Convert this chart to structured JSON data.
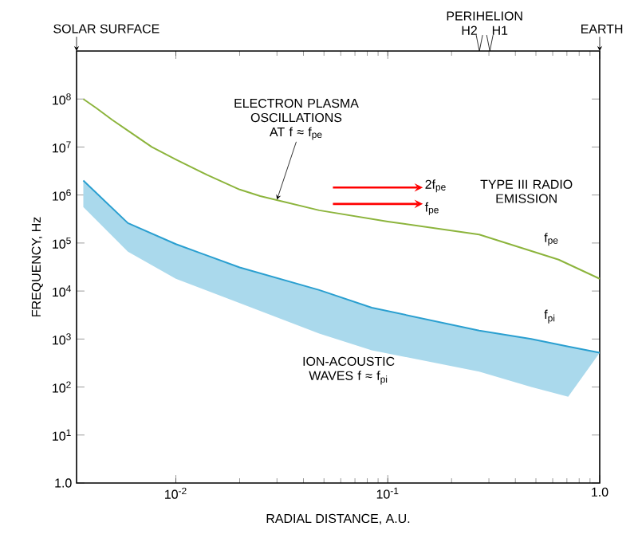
{
  "chart_data": {
    "type": "line",
    "xlabel": "RADIAL DISTANCE, A.U.",
    "ylabel": "FREQUENCY, Hz",
    "log": "xy",
    "xlim": [
      0.0034,
      1.0
    ],
    "ylim": [
      1,
      1000000000
    ],
    "xticks": [
      {
        "value": 0.01,
        "label": "10$^{-2}$"
      },
      {
        "value": 0.1,
        "label": "10$^{-1}$"
      },
      {
        "value": 1,
        "label": "1.0"
      }
    ],
    "yticks": [
      {
        "value": 1,
        "label": "1.0"
      },
      {
        "value": 10,
        "label": "10$^{1}$"
      },
      {
        "value": 100,
        "label": "10$^{2}$"
      },
      {
        "value": 1000,
        "label": "10$^{3}$"
      },
      {
        "value": 10000,
        "label": "10$^{4}$"
      },
      {
        "value": 100000,
        "label": "10$^{5}$"
      },
      {
        "value": 1000000,
        "label": "10$^{6}$"
      },
      {
        "value": 10000000,
        "label": "10$^{7}$"
      },
      {
        "value": 100000000,
        "label": "10$^{8}$"
      }
    ],
    "series": [
      {
        "name": "f$_{pe}$",
        "color": "#8cb43c",
        "x": [
          0.00366,
          0.00421,
          0.005,
          0.00594,
          0.0077,
          0.01,
          0.0141,
          0.02,
          0.025,
          0.0475,
          0.1,
          0.27,
          0.64,
          1.0
        ],
        "values": [
          100000000,
          65000000,
          37000000,
          22000000,
          10000000,
          5500000,
          2600000,
          1300000,
          950000,
          480000,
          280000,
          150000,
          45000,
          18000
        ]
      },
      {
        "name": "f$_{pi}$",
        "color": "#2a9fd0",
        "x": [
          0.00366,
          0.00594,
          0.01,
          0.02,
          0.0475,
          0.084,
          0.27,
          0.475,
          0.71,
          1.0
        ],
        "values": [
          2000000,
          260000,
          95000,
          31000,
          10500,
          4500,
          1500,
          1000,
          700,
          520
        ],
        "upper": [
          2000000,
          260000,
          95000,
          31000,
          10500,
          4500,
          1500,
          1000,
          700,
          520
        ],
        "lower": [
          560000,
          66000,
          18000,
          5600,
          1300,
          580,
          210,
          100,
          63,
          520
        ]
      }
    ],
    "annotations": [
      "SOLAR SURFACE",
      "PERIHELION",
      "H2",
      "H1",
      "EARTH",
      {
        "text": "ELECTRON PLASMA OSCILLATIONS AT f ≈ f$_{pe}$",
        "x": 0.03,
        "y": 800000
      },
      "2f$_{pe}$",
      "f$_{pe}$",
      "TYPE III RADIO EMISSION",
      "ION-ACOUSTIC WAVES f ≈ f$_{pi}$"
    ]
  }
}
